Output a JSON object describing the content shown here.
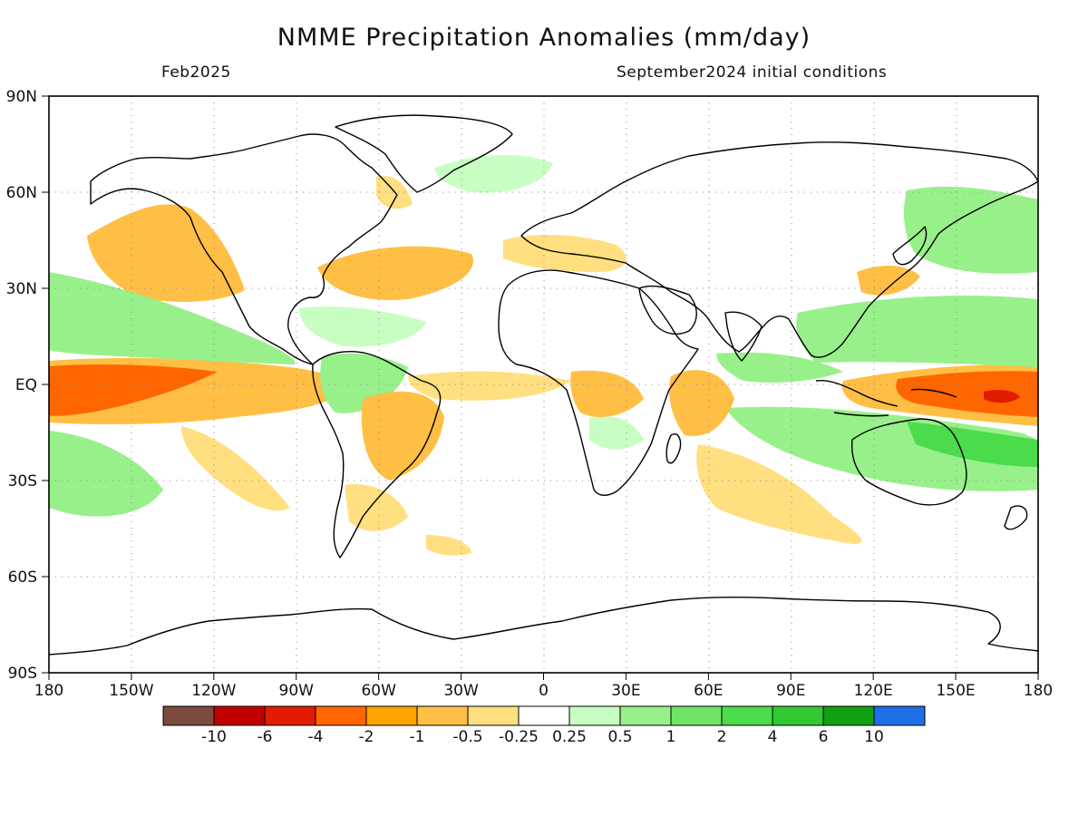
{
  "title": "NMME Precipitation Anomalies (mm/day)",
  "valid_month": "Feb2025",
  "initial_conditions": "September2024 initial conditions",
  "lat_labels": [
    "90N",
    "60N",
    "30N",
    "EQ",
    "30S",
    "60S",
    "90S"
  ],
  "lon_labels": [
    "180",
    "150W",
    "120W",
    "90W",
    "60W",
    "30W",
    "0",
    "30E",
    "60E",
    "90E",
    "120E",
    "150E",
    "180"
  ],
  "colorbar": {
    "colors": [
      "#7b4b3e",
      "#c10000",
      "#e11c00",
      "#ff6600",
      "#ffa500",
      "#ffbf45",
      "#ffdf7f",
      "#ffffff",
      "#c8fec1",
      "#98f08a",
      "#70e466",
      "#4bdb4b",
      "#32c832",
      "#12a012",
      "#1e6ee6"
    ],
    "labels": [
      "-10",
      "-6",
      "-4",
      "-2",
      "-1",
      "-0.5",
      "-0.25",
      "0.25",
      "0.5",
      "1",
      "2",
      "4",
      "6",
      "10"
    ]
  },
  "colors": {
    "dry_light": "#ffdf7f",
    "dry_mid": "#ffbf45",
    "dry_strong": "#ffa500",
    "dry_heavy": "#ff6600",
    "dry_extreme": "#e11c00",
    "wet_light": "#c8fec1",
    "wet_mid": "#98f08a",
    "wet_strong": "#70e466",
    "wet_heavy": "#4bdb4b"
  }
}
